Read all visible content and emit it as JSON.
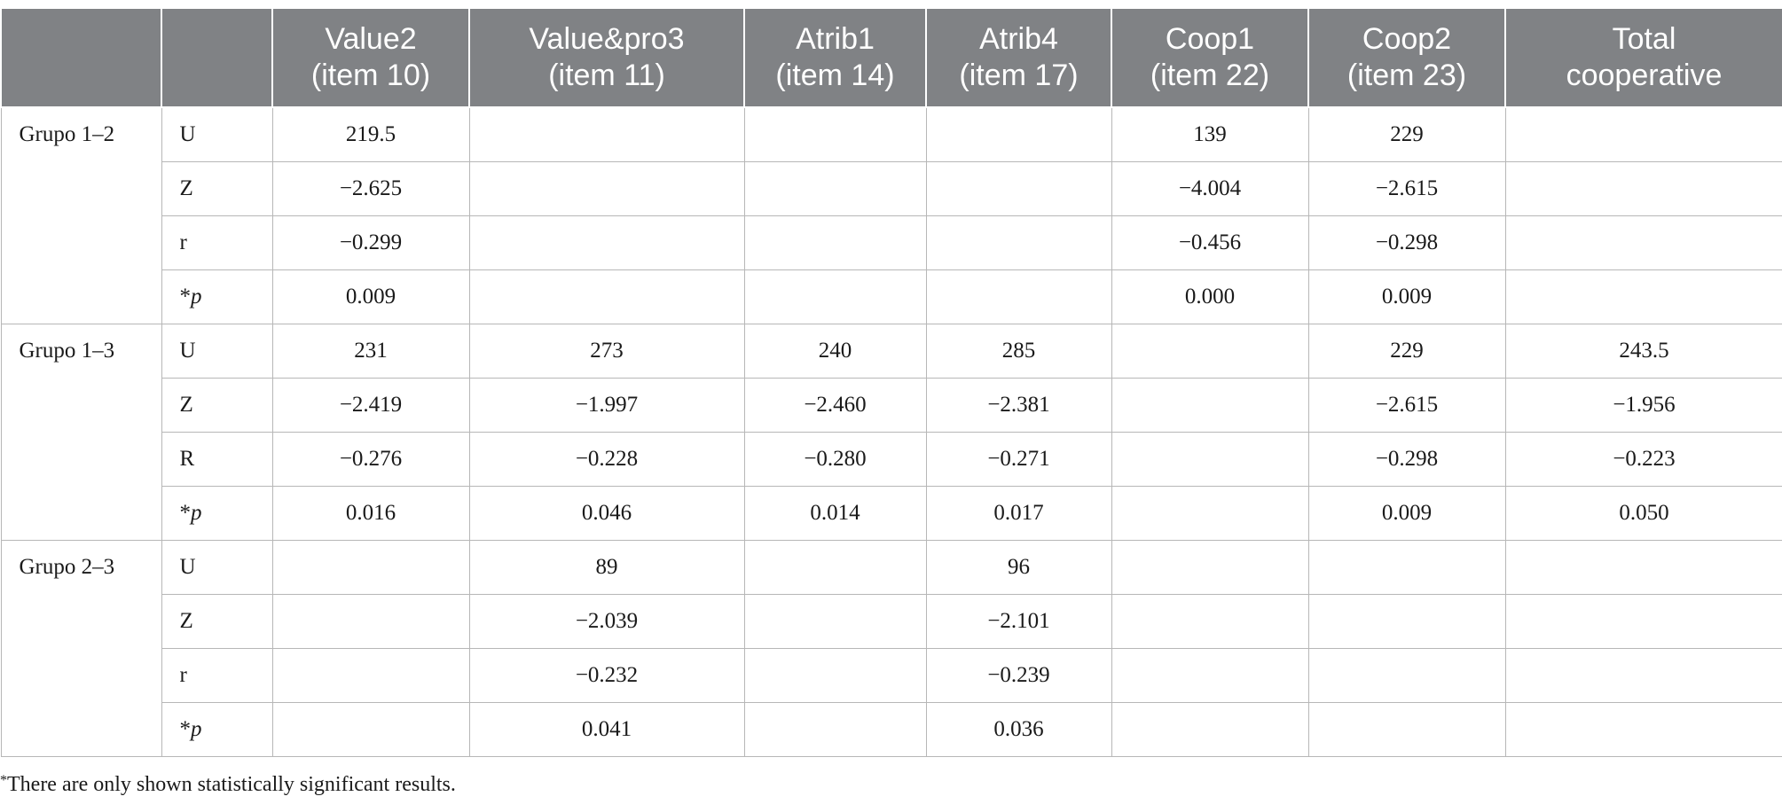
{
  "header": {
    "col0": "",
    "col1": "",
    "value2": [
      "Value2",
      "(item 10)"
    ],
    "valuepro3": [
      "Value&pro3",
      "(item 11)"
    ],
    "atrib1": [
      "Atrib1",
      "(item 14)"
    ],
    "atrib4": [
      "Atrib4",
      "(item 17)"
    ],
    "coop1": [
      "Coop1",
      "(item 22)"
    ],
    "coop2": [
      "Coop2",
      "(item 23)"
    ],
    "total": [
      "Total",
      "cooperative"
    ]
  },
  "groups": [
    {
      "label": "Grupo 1–2",
      "rows": [
        {
          "stat": "U",
          "cells": [
            "219.5",
            "",
            "",
            "",
            "139",
            "229",
            ""
          ]
        },
        {
          "stat": "Z",
          "cells": [
            "−2.625",
            "",
            "",
            "",
            "−4.004",
            "−2.615",
            ""
          ]
        },
        {
          "stat": "r",
          "cells": [
            "−0.299",
            "",
            "",
            "",
            "−0.456",
            "−0.298",
            ""
          ]
        },
        {
          "stat": "*p",
          "cells": [
            "0.009",
            "",
            "",
            "",
            "0.000",
            "0.009",
            ""
          ]
        }
      ]
    },
    {
      "label": "Grupo 1–3",
      "rows": [
        {
          "stat": "U",
          "cells": [
            "231",
            "273",
            "240",
            "285",
            "",
            "229",
            "243.5"
          ]
        },
        {
          "stat": "Z",
          "cells": [
            "−2.419",
            "−1.997",
            "−2.460",
            "−2.381",
            "",
            "−2.615",
            "−1.956"
          ]
        },
        {
          "stat": "R",
          "cells": [
            "−0.276",
            "−0.228",
            "−0.280",
            "−0.271",
            "",
            "−0.298",
            "−0.223"
          ]
        },
        {
          "stat": "*p",
          "cells": [
            "0.016",
            "0.046",
            "0.014",
            "0.017",
            "",
            "0.009",
            "0.050"
          ]
        }
      ]
    },
    {
      "label": "Grupo 2–3",
      "rows": [
        {
          "stat": "U",
          "cells": [
            "",
            "89",
            "",
            "96",
            "",
            "",
            ""
          ]
        },
        {
          "stat": "Z",
          "cells": [
            "",
            "−2.039",
            "",
            "−2.101",
            "",
            "",
            ""
          ]
        },
        {
          "stat": "r",
          "cells": [
            "",
            "−0.232",
            "",
            "−0.239",
            "",
            "",
            ""
          ]
        },
        {
          "stat": "*p",
          "cells": [
            "",
            "0.041",
            "",
            "0.036",
            "",
            "",
            ""
          ]
        }
      ]
    }
  ],
  "footnote": {
    "marker": "*",
    "text": "There are only shown statistically significant results."
  }
}
